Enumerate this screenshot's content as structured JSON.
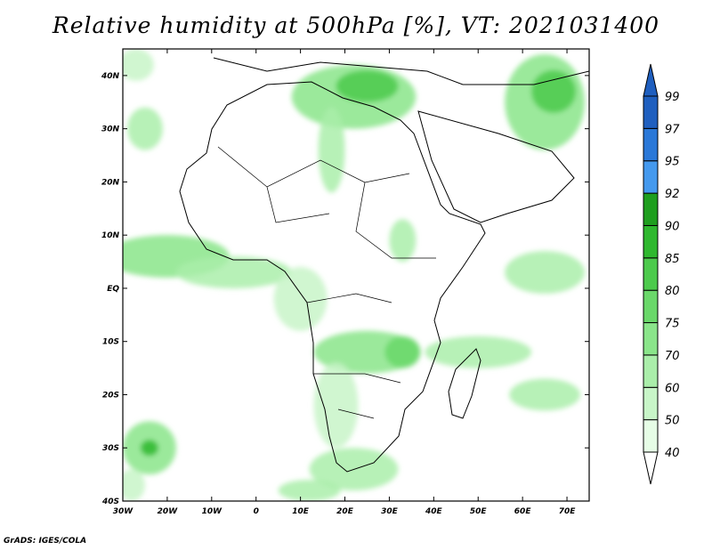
{
  "title": "Relative humidity at 500hPa [%], VT: 2021031400",
  "credit": "GrADS: IGES/COLA",
  "map": {
    "lon_range": [
      -30,
      75
    ],
    "lat_range": [
      -40,
      45
    ],
    "lon_ticks": [
      {
        "value": -30,
        "label": "30W"
      },
      {
        "value": -20,
        "label": "20W"
      },
      {
        "value": -10,
        "label": "10W"
      },
      {
        "value": 0,
        "label": "0"
      },
      {
        "value": 10,
        "label": "10E"
      },
      {
        "value": 20,
        "label": "20E"
      },
      {
        "value": 30,
        "label": "30E"
      },
      {
        "value": 40,
        "label": "40E"
      },
      {
        "value": 50,
        "label": "50E"
      },
      {
        "value": 60,
        "label": "60E"
      },
      {
        "value": 70,
        "label": "70E"
      }
    ],
    "lat_ticks": [
      {
        "value": 40,
        "label": "40N"
      },
      {
        "value": 30,
        "label": "30N"
      },
      {
        "value": 20,
        "label": "20N"
      },
      {
        "value": 10,
        "label": "10N"
      },
      {
        "value": 0,
        "label": "EQ"
      },
      {
        "value": -10,
        "label": "10S"
      },
      {
        "value": -20,
        "label": "20S"
      },
      {
        "value": -30,
        "label": "30S"
      },
      {
        "value": -40,
        "label": "40S"
      }
    ]
  },
  "colorbar": {
    "levels": [
      "40",
      "50",
      "60",
      "70",
      "75",
      "80",
      "85",
      "90",
      "92",
      "95",
      "97",
      "99"
    ],
    "colors": [
      "#ffffff",
      "#e6fde6",
      "#c8f5c8",
      "#aaeeaa",
      "#8ae58a",
      "#6ad86a",
      "#4cca4c",
      "#2eb82e",
      "#1e9e1e",
      "#4499ee",
      "#2a78d8",
      "#1f5fbf"
    ]
  },
  "humidity_regions": [
    {
      "lon": -27,
      "lat": 42,
      "rx": 4,
      "ry": 3,
      "level": 2
    },
    {
      "lon": 22,
      "lat": 36,
      "rx": 14,
      "ry": 6,
      "level": 4
    },
    {
      "lon": 25,
      "lat": 38,
      "rx": 7,
      "ry": 3,
      "level": 6
    },
    {
      "lon": 65,
      "lat": 35,
      "rx": 9,
      "ry": 9,
      "level": 4
    },
    {
      "lon": 67,
      "lat": 37,
      "rx": 5,
      "ry": 4,
      "level": 6
    },
    {
      "lon": -25,
      "lat": 30,
      "rx": 4,
      "ry": 4,
      "level": 3
    },
    {
      "lon": 17,
      "lat": 26,
      "rx": 3,
      "ry": 8,
      "level": 3
    },
    {
      "lon": -20,
      "lat": 6,
      "rx": 14,
      "ry": 4,
      "level": 4
    },
    {
      "lon": -5,
      "lat": 3,
      "rx": 13,
      "ry": 3,
      "level": 3
    },
    {
      "lon": 33,
      "lat": 9,
      "rx": 3,
      "ry": 4,
      "level": 3
    },
    {
      "lon": 65,
      "lat": 3,
      "rx": 9,
      "ry": 4,
      "level": 3
    },
    {
      "lon": 25,
      "lat": -12,
      "rx": 12,
      "ry": 4,
      "level": 4
    },
    {
      "lon": 33,
      "lat": -12,
      "rx": 4,
      "ry": 3,
      "level": 5
    },
    {
      "lon": 50,
      "lat": -12,
      "rx": 12,
      "ry": 3,
      "level": 3
    },
    {
      "lon": 65,
      "lat": -20,
      "rx": 8,
      "ry": 3,
      "level": 3
    },
    {
      "lon": 22,
      "lat": -34,
      "rx": 10,
      "ry": 4,
      "level": 3
    },
    {
      "lon": -24,
      "lat": -30,
      "rx": 6,
      "ry": 5,
      "level": 4
    },
    {
      "lon": -24,
      "lat": -30,
      "rx": 2,
      "ry": 1.5,
      "level": 7
    },
    {
      "lon": 12,
      "lat": -38,
      "rx": 7,
      "ry": 2,
      "level": 3
    },
    {
      "lon": -28,
      "lat": -37,
      "rx": 3,
      "ry": 3,
      "level": 2
    },
    {
      "lon": 18,
      "lat": -22,
      "rx": 5,
      "ry": 8,
      "level": 2
    },
    {
      "lon": 10,
      "lat": -2,
      "rx": 6,
      "ry": 6,
      "level": 2
    }
  ]
}
